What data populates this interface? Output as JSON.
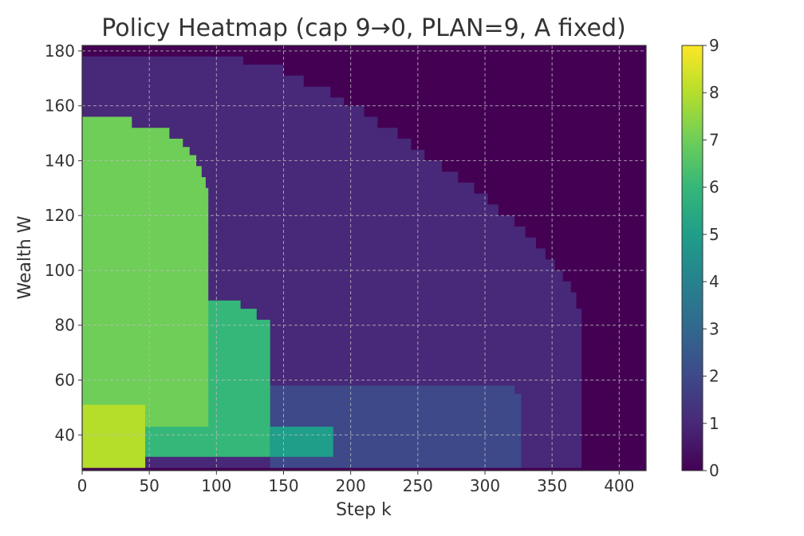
{
  "chart_data": {
    "type": "heatmap",
    "title": "Policy Heatmap (cap 9→0, PLAN=9, A fixed)",
    "xlabel": "Step k",
    "ylabel": "Wealth W",
    "xlim": [
      0,
      420
    ],
    "ylim": [
      27,
      182
    ],
    "xticks": [
      0,
      50,
      100,
      150,
      200,
      250,
      300,
      350,
      400
    ],
    "yticks": [
      40,
      60,
      80,
      100,
      120,
      140,
      160,
      180
    ],
    "grid": true,
    "colormap": "viridis",
    "colorbar": {
      "range": [
        0,
        9
      ],
      "ticks": [
        0,
        1,
        2,
        3,
        4,
        5,
        6,
        7,
        8,
        9
      ]
    },
    "regions": [
      {
        "value": 1,
        "polygon": [
          [
            0,
            178
          ],
          [
            120,
            178
          ],
          [
            120,
            175
          ],
          [
            150,
            175
          ],
          [
            150,
            171
          ],
          [
            165,
            171
          ],
          [
            165,
            167
          ],
          [
            185,
            167
          ],
          [
            185,
            163
          ],
          [
            195,
            163
          ],
          [
            195,
            160
          ],
          [
            210,
            160
          ],
          [
            210,
            156
          ],
          [
            220,
            156
          ],
          [
            220,
            152
          ],
          [
            235,
            152
          ],
          [
            235,
            148
          ],
          [
            245,
            148
          ],
          [
            245,
            144
          ],
          [
            255,
            144
          ],
          [
            255,
            140
          ],
          [
            268,
            140
          ],
          [
            268,
            136
          ],
          [
            280,
            136
          ],
          [
            280,
            132
          ],
          [
            292,
            132
          ],
          [
            292,
            128
          ],
          [
            302,
            128
          ],
          [
            302,
            124
          ],
          [
            310,
            124
          ],
          [
            310,
            120
          ],
          [
            322,
            120
          ],
          [
            322,
            116
          ],
          [
            330,
            116
          ],
          [
            330,
            112
          ],
          [
            338,
            112
          ],
          [
            338,
            108
          ],
          [
            345,
            108
          ],
          [
            345,
            104
          ],
          [
            352,
            104
          ],
          [
            352,
            100
          ],
          [
            358,
            100
          ],
          [
            358,
            96
          ],
          [
            364,
            96
          ],
          [
            364,
            92
          ],
          [
            368,
            92
          ],
          [
            368,
            86
          ],
          [
            372,
            86
          ],
          [
            372,
            28
          ],
          [
            0,
            28
          ]
        ]
      },
      {
        "value": 2,
        "polygon": [
          [
            140,
            58
          ],
          [
            322,
            58
          ],
          [
            322,
            55
          ],
          [
            327,
            55
          ],
          [
            327,
            28
          ],
          [
            140,
            28
          ]
        ]
      },
      {
        "value": 5,
        "polygon": [
          [
            140,
            43
          ],
          [
            187,
            43
          ],
          [
            187,
            32
          ],
          [
            140,
            32
          ]
        ]
      },
      {
        "value": 6,
        "polygon": [
          [
            47,
            89
          ],
          [
            118,
            89
          ],
          [
            118,
            86
          ],
          [
            130,
            86
          ],
          [
            130,
            82
          ],
          [
            140,
            82
          ],
          [
            140,
            32
          ],
          [
            47,
            32
          ]
        ]
      },
      {
        "value": 7,
        "polygon": [
          [
            0,
            156
          ],
          [
            37,
            156
          ],
          [
            37,
            152
          ],
          [
            65,
            152
          ],
          [
            65,
            148
          ],
          [
            75,
            148
          ],
          [
            75,
            145
          ],
          [
            80,
            145
          ],
          [
            80,
            142
          ],
          [
            85,
            142
          ],
          [
            85,
            138
          ],
          [
            89,
            138
          ],
          [
            89,
            134
          ],
          [
            92,
            134
          ],
          [
            92,
            130
          ],
          [
            94,
            130
          ],
          [
            94,
            43
          ],
          [
            47,
            43
          ],
          [
            47,
            51
          ],
          [
            0,
            51
          ]
        ]
      },
      {
        "value": 8,
        "polygon": [
          [
            0,
            51
          ],
          [
            47,
            51
          ],
          [
            47,
            28
          ],
          [
            0,
            28
          ]
        ]
      }
    ]
  }
}
